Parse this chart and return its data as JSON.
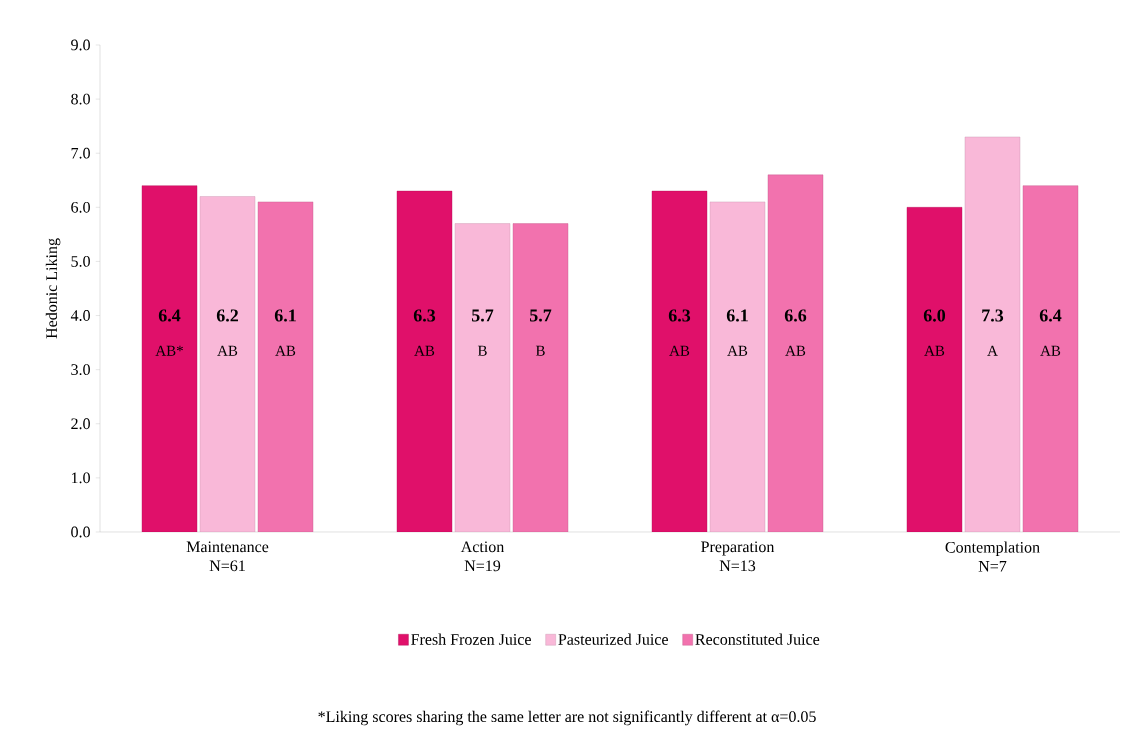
{
  "chart_data": {
    "type": "bar",
    "ylabel": "Hedonic Liking",
    "categories": [
      "Maintenance N=61",
      "Action N=19",
      "Preparation N=13",
      "Contemplation N=7"
    ],
    "series": [
      {
        "name": "Fresh Frozen Juice",
        "color": "#e0106a",
        "values": [
          6.4,
          6.3,
          6.3,
          6.0
        ]
      },
      {
        "name": "Pasteurized Juice",
        "color": "#f9b8d8",
        "values": [
          6.2,
          5.7,
          6.1,
          7.3
        ]
      },
      {
        "name": "Reconstituted Juice",
        "color": "#f272ae",
        "values": [
          6.1,
          5.7,
          6.6,
          6.4
        ]
      }
    ],
    "ylim": [
      0,
      9
    ],
    "yticks": [
      {
        "value": 0,
        "label": "0.0"
      },
      {
        "value": 1,
        "label": "1.0"
      },
      {
        "value": 2,
        "label": "2.0"
      },
      {
        "value": 3,
        "label": "3.0"
      },
      {
        "value": 4,
        "label": "4.0"
      },
      {
        "value": 5,
        "label": "5.0"
      },
      {
        "value": 6,
        "label": "6.0"
      },
      {
        "value": 7,
        "label": "7.0"
      },
      {
        "value": 8,
        "label": "8.0"
      },
      {
        "value": 9,
        "label": "9.0"
      }
    ],
    "value_labels": [
      [
        "6.4",
        "6.3",
        "6.3",
        "6.0"
      ],
      [
        "6.2",
        "5.7",
        "6.1",
        "7.3"
      ],
      [
        "6.1",
        "5.7",
        "6.6",
        "6.4"
      ]
    ],
    "grid": false,
    "legend": "bottom",
    "annotations": [
      "AB*",
      "AB",
      "AB",
      "AB",
      "B",
      "B",
      "AB",
      "AB",
      "AB",
      "AB",
      "A",
      "AB",
      "*Liking scores sharing the same letter are not significantly different at α=0.05"
    ]
  }
}
